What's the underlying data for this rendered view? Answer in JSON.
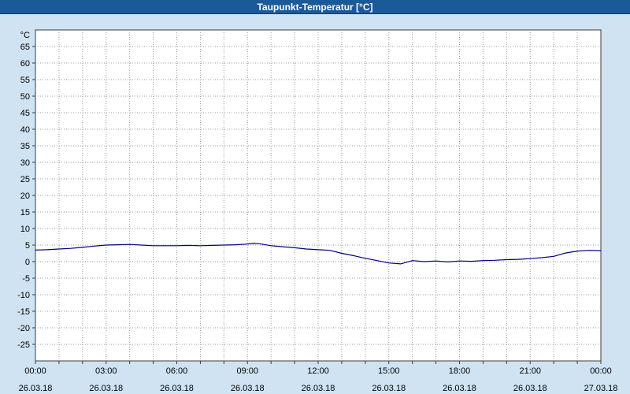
{
  "window": {
    "title": "Taupunkt-Temperatur [°C]"
  },
  "colors": {
    "titlebar_bg": "#1b5a99",
    "titlebar_text": "#ffffff",
    "page_bg": "#cfe3f2",
    "plot_bg": "#ffffff",
    "grid": "#9c9c9c",
    "axis": "#3c3c3c",
    "text": "#000000",
    "line": "#000080"
  },
  "chart_data": {
    "type": "line",
    "title": "Taupunkt-Temperatur [°C]",
    "ylabel": "°C",
    "xlabel": "",
    "ylim": [
      -30,
      70
    ],
    "yticks": {
      "start": -25,
      "end": 65,
      "step": 5
    },
    "xlim": [
      0,
      24
    ],
    "x_minor_step_hours": 1,
    "grid": true,
    "legend": "none",
    "xticks": [
      {
        "hour": 0,
        "time": "00:00",
        "date": "26.03.18"
      },
      {
        "hour": 3,
        "time": "03:00",
        "date": "26.03.18"
      },
      {
        "hour": 6,
        "time": "06:00",
        "date": "26.03.18"
      },
      {
        "hour": 9,
        "time": "09:00",
        "date": "26.03.18"
      },
      {
        "hour": 12,
        "time": "12:00",
        "date": "26.03.18"
      },
      {
        "hour": 15,
        "time": "15:00",
        "date": "26.03.18"
      },
      {
        "hour": 18,
        "time": "18:00",
        "date": "26.03.18"
      },
      {
        "hour": 21,
        "time": "21:00",
        "date": "26.03.18"
      },
      {
        "hour": 24,
        "time": "00:00",
        "date": "27.03.18"
      }
    ],
    "series": [
      {
        "name": "Taupunkt-Temperatur",
        "color": "#000080",
        "x": [
          0,
          0.5,
          1,
          1.5,
          2,
          2.5,
          3,
          3.5,
          4,
          4.5,
          5,
          5.5,
          6,
          6.5,
          7,
          7.5,
          8,
          8.5,
          9,
          9.25,
          9.5,
          10,
          10.5,
          11,
          11.5,
          12,
          12.5,
          13,
          13.5,
          14,
          14.5,
          15,
          15.5,
          16,
          16.5,
          17,
          17.5,
          18,
          18.5,
          19,
          19.5,
          20,
          20.5,
          21,
          21.5,
          22,
          22.5,
          23,
          23.5,
          24
        ],
        "values": [
          3.5,
          3.6,
          3.8,
          4.0,
          4.3,
          4.7,
          5.0,
          5.1,
          5.2,
          5.0,
          4.8,
          4.8,
          4.8,
          4.9,
          4.8,
          4.9,
          5.0,
          5.1,
          5.3,
          5.5,
          5.4,
          4.8,
          4.5,
          4.2,
          3.8,
          3.6,
          3.4,
          2.5,
          1.8,
          1.0,
          0.3,
          -0.4,
          -0.7,
          0.3,
          0.0,
          0.2,
          -0.1,
          0.2,
          0.1,
          0.3,
          0.4,
          0.6,
          0.7,
          0.9,
          1.2,
          1.6,
          2.6,
          3.2,
          3.4,
          3.3
        ]
      }
    ]
  }
}
